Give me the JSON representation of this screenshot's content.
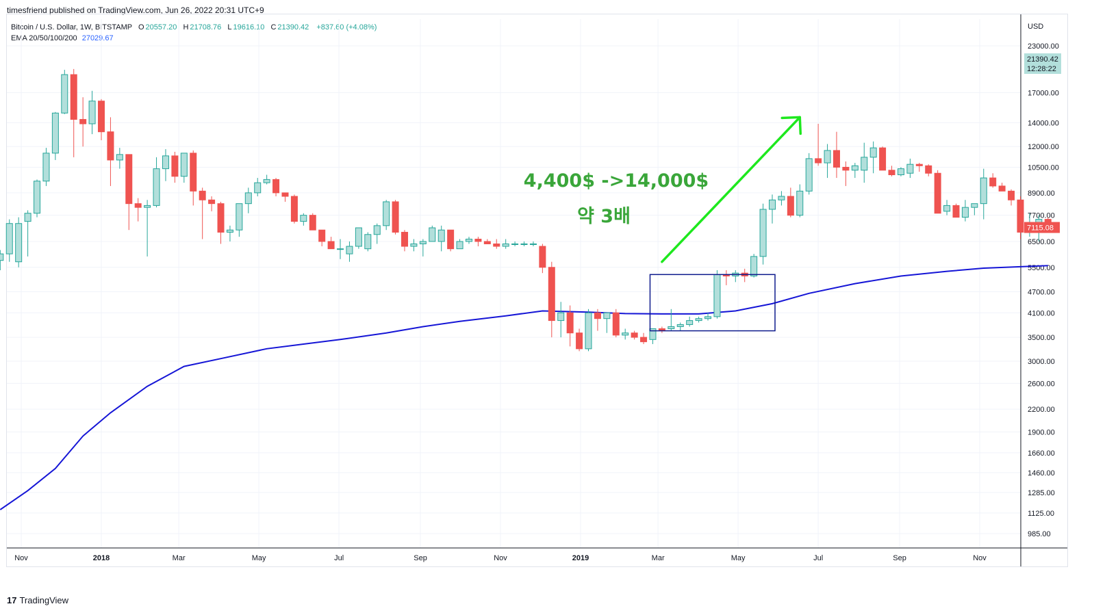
{
  "header": {
    "published": "timesfriend published on TradingView.com, Jun 26, 2022 20:31 UTC+9"
  },
  "legend": {
    "symbol": "Bitcoin / U.S. Dollar, 1W, BITSTAMP",
    "o_label": "O",
    "o": "20557.20",
    "h_label": "H",
    "h": "21708.76",
    "l_label": "L",
    "l": "19616.10",
    "c_label": "C",
    "c": "21390.42",
    "change": "+837.60 (+4.08%)",
    "ema_label": "EMA 20/50/100/200",
    "ema_value": "27029.67"
  },
  "footer": {
    "logo": "TradingView",
    "logo_mark": "17"
  },
  "chart_data": {
    "type": "candlestick",
    "currency": "USD",
    "y_scale": "log",
    "y_ticks": [
      "23000.00",
      "17000.00",
      "14000.00",
      "12000.00",
      "10500.00",
      "8900.00",
      "7700.00",
      "6500.00",
      "5500.00",
      "4700.00",
      "4100.00",
      "3500.00",
      "3000.00",
      "2600.00",
      "2200.00",
      "1900.00",
      "1660.00",
      "1460.00",
      "1285.00",
      "1125.00",
      "985.00"
    ],
    "x_ticks": [
      {
        "label": "Nov",
        "date": "2017-11-01",
        "bold": false
      },
      {
        "label": "2018",
        "date": "2018-01-01",
        "bold": true
      },
      {
        "label": "Mar",
        "date": "2018-03-01",
        "bold": false
      },
      {
        "label": "May",
        "date": "2018-05-01",
        "bold": false
      },
      {
        "label": "Jul",
        "date": "2018-07-01",
        "bold": false
      },
      {
        "label": "Sep",
        "date": "2018-09-01",
        "bold": false
      },
      {
        "label": "Nov",
        "date": "2018-11-01",
        "bold": false
      },
      {
        "label": "2019",
        "date": "2019-01-01",
        "bold": true
      },
      {
        "label": "Mar",
        "date": "2019-03-01",
        "bold": false
      },
      {
        "label": "May",
        "date": "2019-05-01",
        "bold": false
      },
      {
        "label": "Jul",
        "date": "2019-07-01",
        "bold": false
      },
      {
        "label": "Sep",
        "date": "2019-09-01",
        "bold": false
      },
      {
        "label": "Nov",
        "date": "2019-11-01",
        "bold": false
      }
    ],
    "candles": [
      [
        "2017-10-16",
        5750,
        6150,
        5400,
        6000
      ],
      [
        "2017-10-23",
        6000,
        7500,
        5700,
        7300
      ],
      [
        "2017-10-30",
        5700,
        7600,
        5500,
        7300
      ],
      [
        "2017-11-06",
        7400,
        7950,
        5900,
        7800
      ],
      [
        "2017-11-13",
        7800,
        9700,
        7600,
        9600
      ],
      [
        "2017-11-20",
        9600,
        11900,
        9300,
        11500
      ],
      [
        "2017-11-27",
        11500,
        15000,
        11000,
        14900
      ],
      [
        "2017-12-04",
        14900,
        19700,
        14800,
        19100
      ],
      [
        "2017-12-11",
        19100,
        19800,
        11200,
        14300
      ],
      [
        "2017-12-18",
        14300,
        16500,
        12000,
        13900
      ],
      [
        "2017-12-25",
        13900,
        17200,
        13000,
        16100
      ],
      [
        "2018-01-01",
        16100,
        16300,
        12500,
        13200
      ],
      [
        "2018-01-08",
        13200,
        14500,
        9300,
        11000
      ],
      [
        "2018-01-15",
        11000,
        11900,
        10400,
        11400
      ],
      [
        "2018-01-22",
        11400,
        11400,
        7000,
        8300
      ],
      [
        "2018-01-29",
        8300,
        8600,
        7400,
        8100
      ],
      [
        "2018-02-05",
        8100,
        8500,
        5900,
        8200
      ],
      [
        "2018-02-12",
        8200,
        11200,
        8100,
        10400
      ],
      [
        "2018-02-19",
        10400,
        11800,
        9600,
        11300
      ],
      [
        "2018-02-26",
        11300,
        11600,
        9500,
        9900
      ],
      [
        "2018-03-05",
        9900,
        11500,
        9500,
        11500
      ],
      [
        "2018-03-12",
        11500,
        11700,
        8200,
        9000
      ],
      [
        "2018-03-19",
        9000,
        9200,
        6600,
        8500
      ],
      [
        "2018-03-26",
        8500,
        8700,
        7900,
        8300
      ],
      [
        "2018-04-02",
        8300,
        8400,
        6400,
        6900
      ],
      [
        "2018-04-09",
        6900,
        7200,
        6500,
        7000
      ],
      [
        "2018-04-16",
        7000,
        8300,
        6700,
        8300
      ],
      [
        "2018-04-23",
        8300,
        9200,
        7800,
        8900
      ],
      [
        "2018-04-30",
        8900,
        9800,
        8700,
        9500
      ],
      [
        "2018-05-07",
        9500,
        10000,
        9400,
        9700
      ],
      [
        "2018-05-14",
        9700,
        9800,
        8700,
        8900
      ],
      [
        "2018-05-21",
        8900,
        8900,
        8400,
        8700
      ],
      [
        "2018-05-28",
        8700,
        8800,
        7300,
        7400
      ],
      [
        "2018-06-04",
        7400,
        7800,
        7200,
        7700
      ],
      [
        "2018-06-11",
        7700,
        7800,
        7000,
        7000
      ],
      [
        "2018-06-18",
        7000,
        6900,
        6300,
        6500
      ],
      [
        "2018-06-25",
        6500,
        6700,
        6300,
        6200
      ],
      [
        "2018-07-02",
        6200,
        6600,
        5800,
        6200
      ],
      [
        "2018-07-09",
        6000,
        6500,
        5700,
        6300
      ],
      [
        "2018-07-16",
        6300,
        7000,
        6200,
        7100
      ],
      [
        "2018-07-23",
        6200,
        6900,
        6100,
        6800
      ],
      [
        "2018-07-30",
        6800,
        7300,
        6400,
        7200
      ],
      [
        "2018-08-06",
        7200,
        8500,
        7000,
        8400
      ],
      [
        "2018-08-13",
        8400,
        8500,
        6800,
        6900
      ],
      [
        "2018-08-20",
        6900,
        7000,
        6100,
        6300
      ],
      [
        "2018-08-27",
        6300,
        6600,
        6100,
        6400
      ],
      [
        "2018-09-03",
        6400,
        6600,
        5900,
        6500
      ],
      [
        "2018-09-10",
        6500,
        7200,
        6500,
        7100
      ],
      [
        "2018-09-17",
        6500,
        7200,
        6100,
        7000
      ],
      [
        "2018-09-24",
        7000,
        7000,
        6100,
        6200
      ],
      [
        "2018-10-01",
        6200,
        6600,
        6200,
        6500
      ],
      [
        "2018-10-08",
        6500,
        6700,
        6400,
        6600
      ],
      [
        "2018-10-15",
        6600,
        6700,
        6300,
        6500
      ],
      [
        "2018-10-22",
        6500,
        6600,
        6400,
        6400
      ],
      [
        "2018-10-29",
        6400,
        6600,
        6200,
        6300
      ],
      [
        "2018-11-05",
        6300,
        6600,
        6200,
        6400
      ],
      [
        "2018-11-12",
        6400,
        6500,
        6300,
        6400
      ],
      [
        "2018-11-19",
        6400,
        6500,
        6300,
        6400
      ],
      [
        "2018-11-26",
        6400,
        6500,
        6300,
        6400
      ],
      [
        "2018-12-03",
        6300,
        6400,
        5300,
        5500
      ],
      [
        "2018-12-10",
        5500,
        5700,
        3500,
        3900
      ],
      [
        "2018-12-17",
        3900,
        4400,
        3500,
        4100
      ],
      [
        "2018-12-24",
        4100,
        4300,
        3300,
        3600
      ],
      [
        "2018-12-31",
        3600,
        3700,
        3200,
        3250
      ],
      [
        "2019-01-07",
        3250,
        4200,
        3200,
        4100
      ],
      [
        "2019-01-14",
        4100,
        4200,
        3650,
        3950
      ],
      [
        "2019-01-21",
        3950,
        4100,
        3600,
        4100
      ],
      [
        "2019-01-28",
        4100,
        4200,
        3500,
        3550
      ],
      [
        "2019-02-04",
        3550,
        3700,
        3450,
        3600
      ],
      [
        "2019-02-11",
        3600,
        3650,
        3450,
        3500
      ],
      [
        "2019-02-18",
        3500,
        3600,
        3350,
        3400
      ],
      [
        "2019-02-25",
        3450,
        3700,
        3350,
        3700
      ],
      [
        "2019-03-04",
        3700,
        3750,
        3600,
        3650
      ],
      [
        "2019-03-11",
        3700,
        4200,
        3650,
        3750
      ],
      [
        "2019-03-18",
        3750,
        3850,
        3650,
        3800
      ],
      [
        "2019-03-25",
        3800,
        4000,
        3750,
        3900
      ],
      [
        "2019-04-01",
        3900,
        4000,
        3850,
        3950
      ],
      [
        "2019-04-08",
        3950,
        4100,
        3900,
        4000
      ],
      [
        "2019-04-15",
        4000,
        5400,
        3950,
        5250
      ],
      [
        "2019-04-22",
        5250,
        5400,
        4900,
        5200
      ],
      [
        "2019-04-29",
        5200,
        5400,
        5000,
        5300
      ],
      [
        "2019-05-06",
        5300,
        5450,
        5000,
        5200
      ],
      [
        "2019-05-13",
        5200,
        6000,
        5150,
        5900
      ],
      [
        "2019-05-20",
        5900,
        8300,
        5600,
        8000
      ],
      [
        "2019-05-27",
        8000,
        8800,
        7300,
        8500
      ],
      [
        "2019-06-03",
        8500,
        9000,
        8200,
        8700
      ],
      [
        "2019-06-10",
        8700,
        9200,
        7600,
        7700
      ],
      [
        "2019-06-17",
        7700,
        9400,
        7600,
        9000
      ],
      [
        "2019-06-24",
        9000,
        11500,
        8800,
        11100
      ],
      [
        "2019-07-01",
        11100,
        13900,
        10600,
        10800
      ],
      [
        "2019-07-08",
        10800,
        12200,
        9800,
        11700
      ],
      [
        "2019-07-15",
        11700,
        13200,
        9800,
        10500
      ],
      [
        "2019-07-22",
        10500,
        10900,
        9300,
        10300
      ],
      [
        "2019-07-29",
        10300,
        10800,
        9800,
        10600
      ],
      [
        "2019-08-05",
        10300,
        12300,
        9500,
        11200
      ],
      [
        "2019-08-12",
        11200,
        12400,
        10100,
        11900
      ],
      [
        "2019-08-19",
        11900,
        12000,
        10400,
        10300
      ],
      [
        "2019-08-26",
        10300,
        10600,
        9900,
        10000
      ],
      [
        "2019-09-02",
        10000,
        10500,
        9900,
        10400
      ],
      [
        "2019-09-09",
        10100,
        11100,
        9800,
        10700
      ],
      [
        "2019-09-16",
        10700,
        10800,
        10200,
        10600
      ],
      [
        "2019-09-23",
        10600,
        10700,
        9900,
        10100
      ],
      [
        "2019-09-30",
        10100,
        10300,
        7800,
        7800
      ],
      [
        "2019-10-07",
        7900,
        8500,
        7700,
        8200
      ],
      [
        "2019-10-14",
        8200,
        8300,
        7600,
        7600
      ],
      [
        "2019-10-21",
        7600,
        8500,
        7400,
        8100
      ],
      [
        "2019-10-28",
        8100,
        8300,
        7700,
        8300
      ],
      [
        "2019-11-04",
        8300,
        10400,
        7500,
        9800
      ],
      [
        "2019-11-11",
        9800,
        10100,
        9200,
        9300
      ],
      [
        "2019-11-18",
        9300,
        9500,
        9000,
        9000
      ],
      [
        "2019-11-25",
        9000,
        9100,
        8200,
        8500
      ],
      [
        "2019-12-02",
        8500,
        8700,
        6600,
        6900
      ],
      [
        "2019-12-09",
        6900,
        7800,
        6700,
        7300
      ],
      [
        "2019-12-16",
        7300,
        7700,
        6500,
        7500
      ],
      [
        "2019-12-23",
        7500,
        7600,
        7000,
        7100
      ]
    ],
    "ema": [
      [
        "2017-10-16",
        1150
      ],
      [
        "2017-11-06",
        1300
      ],
      [
        "2017-11-27",
        1500
      ],
      [
        "2017-12-18",
        1850
      ],
      [
        "2018-01-08",
        2150
      ],
      [
        "2018-02-05",
        2550
      ],
      [
        "2018-03-05",
        2900
      ],
      [
        "2018-04-02",
        3050
      ],
      [
        "2018-05-07",
        3250
      ],
      [
        "2018-06-04",
        3350
      ],
      [
        "2018-07-02",
        3450
      ],
      [
        "2018-08-06",
        3600
      ],
      [
        "2018-09-03",
        3750
      ],
      [
        "2018-10-01",
        3880
      ],
      [
        "2018-11-05",
        4020
      ],
      [
        "2018-12-03",
        4150
      ],
      [
        "2019-01-07",
        4120
      ],
      [
        "2019-02-04",
        4080
      ],
      [
        "2019-03-04",
        4070
      ],
      [
        "2019-04-01",
        4070
      ],
      [
        "2019-04-29",
        4150
      ],
      [
        "2019-05-27",
        4350
      ],
      [
        "2019-06-24",
        4650
      ],
      [
        "2019-07-29",
        4950
      ],
      [
        "2019-09-02",
        5200
      ],
      [
        "2019-10-07",
        5360
      ],
      [
        "2019-11-04",
        5470
      ],
      [
        "2019-12-23",
        5560
      ]
    ],
    "price_label": {
      "value": "21390.42",
      "time": "12:28:22"
    },
    "last_label": {
      "value": "7115.08"
    },
    "box": {
      "from": "2019-02-25",
      "to": "2019-05-27",
      "low": 3650,
      "high": 5250
    },
    "arrow": {
      "from": [
        "2019-03-04",
        5700
      ],
      "to": [
        "2019-06-17",
        14500
      ]
    },
    "annotations": [
      "4,400$ ->14,000$",
      "약 3배"
    ]
  }
}
